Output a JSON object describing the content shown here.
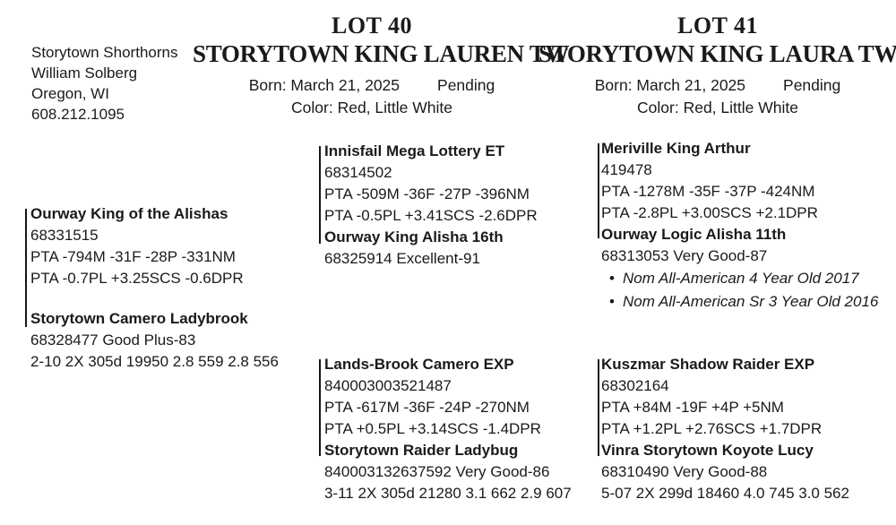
{
  "ui": {
    "bullet": "•"
  },
  "breeder": {
    "farm": "Storytown Shorthorns",
    "owner": "William Solberg",
    "location": "Oregon, WI",
    "phone": "608.212.1095"
  },
  "lot40": {
    "lot_label": "LOT 40",
    "name": "STORYTOWN KING LAUREN TW",
    "born_label": "Born: March 21, 2025",
    "status": "Pending",
    "color_label": "Color: Red, Little White"
  },
  "lot41": {
    "lot_label": "LOT 41",
    "name": "STORYTOWN KING LAURA TW",
    "born_label": "Born: March 21, 2025",
    "status": "Pending",
    "color_label": "Color: Red, Little White"
  },
  "pedigree": {
    "shared": {
      "sire": {
        "name": "Ourway King of the Alishas",
        "reg": "68331515",
        "pta1": "PTA -794M -31F -28P -331NM",
        "pta2": "PTA -0.7PL +3.25SCS -0.6DPR"
      },
      "dam": {
        "name": "Storytown Camero Ladybrook",
        "reg_score": "68328477 Good Plus-83",
        "record": "2-10 2X 305d 19950 2.8 559 2.8 556"
      }
    },
    "lot40": {
      "top": {
        "sire": {
          "name": "Innisfail Mega Lottery ET",
          "reg": "68314502",
          "pta1": "PTA -509M -36F -27P -396NM",
          "pta2": "PTA -0.5PL +3.41SCS -2.6DPR"
        },
        "dam": {
          "name": "Ourway King Alisha 16th",
          "reg_score": "68325914 Excellent-91"
        }
      },
      "bottom": {
        "sire": {
          "name": "Lands-Brook Camero EXP",
          "reg": "840003003521487",
          "pta1": "PTA -617M -36F -24P -270NM",
          "pta2": "PTA +0.5PL +3.14SCS -1.4DPR"
        },
        "dam": {
          "name": "Storytown Raider Ladybug",
          "reg_score": "840003132637592 Very Good-86",
          "record": "3-11 2X 305d 21280 3.1 662 2.9 607"
        }
      }
    },
    "lot41": {
      "top": {
        "sire": {
          "name": "Meriville King Arthur",
          "reg": "419478",
          "pta1": "PTA -1278M -35F -37P -424NM",
          "pta2": "PTA -2.8PL +3.00SCS +2.1DPR"
        },
        "dam": {
          "name": "Ourway Logic Alisha 11th",
          "reg_score": "68313053 Very Good-87",
          "awards": [
            "Nom All-American 4 Year Old 2017",
            "Nom All-American Sr 3 Year Old 2016"
          ]
        }
      },
      "bottom": {
        "sire": {
          "name": "Kuszmar Shadow Raider EXP",
          "reg": "68302164",
          "pta1": "PTA +84M -19F +4P +5NM",
          "pta2": "PTA +1.2PL +2.76SCS +1.7DPR"
        },
        "dam": {
          "name": "Vinra Storytown Koyote Lucy",
          "reg_score": "68310490 Very Good-88",
          "record": "5-07 2X 299d 18460 4.0 745 3.0 562"
        }
      }
    }
  }
}
